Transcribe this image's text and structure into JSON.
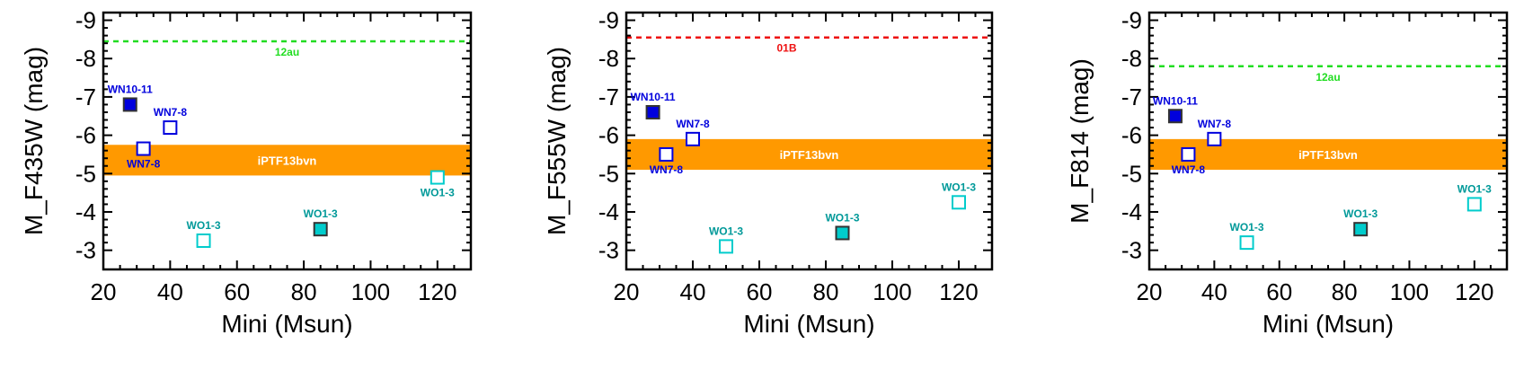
{
  "chart_data": [
    {
      "type": "scatter",
      "title": "",
      "xlabel": "Mini (Msun)",
      "ylabel": "M_F435W (mag)",
      "xlim": [
        20,
        130
      ],
      "ylim": [
        -2.5,
        -9.2
      ],
      "xticks": [
        20,
        40,
        60,
        80,
        100,
        120
      ],
      "xtick_labels": [
        "20",
        "40",
        "60",
        "80",
        "100",
        "120"
      ],
      "yticks": [
        -3,
        -4,
        -5,
        -6,
        -7,
        -8,
        -9
      ],
      "ytick_labels": [
        "-3",
        "-4",
        "-5",
        "-6",
        "-7",
        "-8",
        "-9"
      ],
      "band": {
        "label": "iPTF13bvn",
        "y_from": -4.95,
        "y_to": -5.75,
        "color": "#ff9900"
      },
      "reference_line": {
        "label": "12au",
        "y": -8.45,
        "color": "#22dd22"
      },
      "points": [
        {
          "label": "WN10-11",
          "x": 28,
          "y": -6.8,
          "filled": true,
          "color": "#0000dd",
          "label_pos": "above"
        },
        {
          "label": "WN7-8",
          "x": 40,
          "y": -6.2,
          "filled": false,
          "color": "#0000dd",
          "label_pos": "above"
        },
        {
          "label": "WN7-8",
          "x": 32,
          "y": -5.65,
          "filled": false,
          "color": "#0000dd",
          "label_pos": "below"
        },
        {
          "label": "WO1-3",
          "x": 50,
          "y": -3.25,
          "filled": false,
          "color": "#00cccc",
          "label_pos": "above"
        },
        {
          "label": "WO1-3",
          "x": 85,
          "y": -3.55,
          "filled": true,
          "color": "#00cccc",
          "label_pos": "above"
        },
        {
          "label": "WO1-3",
          "x": 120,
          "y": -4.9,
          "filled": false,
          "color": "#00cccc",
          "label_pos": "below"
        }
      ]
    },
    {
      "type": "scatter",
      "title": "",
      "xlabel": "Mini (Msun)",
      "ylabel": "M_F555W (mag)",
      "xlim": [
        20,
        130
      ],
      "ylim": [
        -2.5,
        -9.2
      ],
      "xticks": [
        20,
        40,
        60,
        80,
        100,
        120
      ],
      "xtick_labels": [
        "20",
        "40",
        "60",
        "80",
        "100",
        "120"
      ],
      "yticks": [
        -3,
        -4,
        -5,
        -6,
        -7,
        -8,
        -9
      ],
      "ytick_labels": [
        "-3",
        "-4",
        "-5",
        "-6",
        "-7",
        "-8",
        "-9"
      ],
      "band": {
        "label": "iPTF13bvn",
        "y_from": -5.1,
        "y_to": -5.9,
        "color": "#ff9900"
      },
      "reference_line": {
        "label": "01B",
        "y": -8.55,
        "color": "#ee1111"
      },
      "points": [
        {
          "label": "WN10-11",
          "x": 28,
          "y": -6.6,
          "filled": true,
          "color": "#0000dd",
          "label_pos": "above"
        },
        {
          "label": "WN7-8",
          "x": 40,
          "y": -5.9,
          "filled": false,
          "color": "#0000dd",
          "label_pos": "above"
        },
        {
          "label": "WN7-8",
          "x": 32,
          "y": -5.5,
          "filled": false,
          "color": "#0000dd",
          "label_pos": "below"
        },
        {
          "label": "WO1-3",
          "x": 50,
          "y": -3.1,
          "filled": false,
          "color": "#00cccc",
          "label_pos": "above"
        },
        {
          "label": "WO1-3",
          "x": 85,
          "y": -3.45,
          "filled": true,
          "color": "#00cccc",
          "label_pos": "above"
        },
        {
          "label": "WO1-3",
          "x": 120,
          "y": -4.25,
          "filled": false,
          "color": "#00cccc",
          "label_pos": "above"
        }
      ]
    },
    {
      "type": "scatter",
      "title": "",
      "xlabel": "Mini (Msun)",
      "ylabel": "M_F814 (mag)",
      "xlim": [
        20,
        130
      ],
      "ylim": [
        -2.5,
        -9.2
      ],
      "xticks": [
        20,
        40,
        60,
        80,
        100,
        120
      ],
      "xtick_labels": [
        "20",
        "40",
        "60",
        "80",
        "100",
        "120"
      ],
      "yticks": [
        -3,
        -4,
        -5,
        -6,
        -7,
        -8,
        -9
      ],
      "ytick_labels": [
        "-3",
        "-4",
        "-5",
        "-6",
        "-7",
        "-8",
        "-9"
      ],
      "band": {
        "label": "iPTF13bvn",
        "y_from": -5.1,
        "y_to": -5.9,
        "color": "#ff9900"
      },
      "reference_line": {
        "label": "12au",
        "y": -7.8,
        "color": "#22dd22"
      },
      "points": [
        {
          "label": "WN10-11",
          "x": 28,
          "y": -6.5,
          "filled": true,
          "color": "#0000dd",
          "label_pos": "above"
        },
        {
          "label": "WN7-8",
          "x": 40,
          "y": -5.9,
          "filled": false,
          "color": "#0000dd",
          "label_pos": "above"
        },
        {
          "label": "WN7-8",
          "x": 32,
          "y": -5.5,
          "filled": false,
          "color": "#0000dd",
          "label_pos": "below"
        },
        {
          "label": "WO1-3",
          "x": 50,
          "y": -3.2,
          "filled": false,
          "color": "#00cccc",
          "label_pos": "above"
        },
        {
          "label": "WO1-3",
          "x": 85,
          "y": -3.55,
          "filled": true,
          "color": "#00cccc",
          "label_pos": "above"
        },
        {
          "label": "WO1-3",
          "x": 120,
          "y": -4.2,
          "filled": false,
          "color": "#00cccc",
          "label_pos": "above"
        }
      ]
    }
  ]
}
